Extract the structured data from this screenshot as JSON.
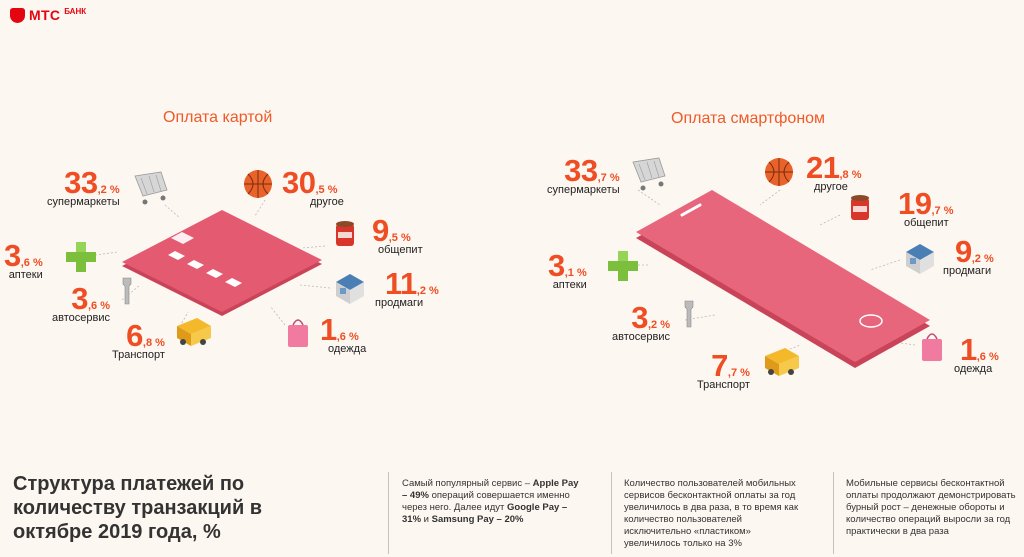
{
  "brand": {
    "name": "МТС",
    "sub": "БАНК"
  },
  "chart_data": [
    {
      "type": "table",
      "title": "Оплата картой",
      "categories": [
        "супермаркеты",
        "другое",
        "аптеки",
        "общепит",
        "автосервис",
        "продмаги",
        "Транспорт",
        "одежда"
      ],
      "values": [
        33.2,
        30.5,
        3.6,
        9.5,
        3.6,
        11.2,
        6.8,
        1.6
      ],
      "unit": "%"
    },
    {
      "type": "table",
      "title": "Оплата смартфоном",
      "categories": [
        "супермаркеты",
        "другое",
        "общепит",
        "аптеки",
        "продмаги",
        "автосервис",
        "Транспорт",
        "одежда"
      ],
      "values": [
        33.7,
        21.8,
        19.7,
        3.1,
        9.2,
        3.2,
        7.7,
        1.6
      ],
      "unit": "%"
    }
  ],
  "card": {
    "title": "Оплата картой",
    "items": [
      {
        "int": "33",
        "dec": ",2 %",
        "label": "супермаркеты"
      },
      {
        "int": "30",
        "dec": ",5 %",
        "label": "другое"
      },
      {
        "int": "3",
        "dec": ",6 %",
        "label": "аптеки"
      },
      {
        "int": "9",
        "dec": ",5 %",
        "label": "общепит"
      },
      {
        "int": "3",
        "dec": ",6 %",
        "label": "автосервис"
      },
      {
        "int": "11",
        "dec": ",2 %",
        "label": "продмаги"
      },
      {
        "int": "6",
        "dec": ",8 %",
        "label": "Транспорт"
      },
      {
        "int": "1",
        "dec": ",6 %",
        "label": "одежда"
      }
    ]
  },
  "phone": {
    "title": "Оплата смартфоном",
    "items": [
      {
        "int": "33",
        "dec": ",7 %",
        "label": "супермаркеты"
      },
      {
        "int": "21",
        "dec": ",8 %",
        "label": "другое"
      },
      {
        "int": "19",
        "dec": ",7 %",
        "label": "общепит"
      },
      {
        "int": "3",
        "dec": ",1 %",
        "label": "аптеки"
      },
      {
        "int": "9",
        "dec": ",2 %",
        "label": "продмаги"
      },
      {
        "int": "3",
        "dec": ",2 %",
        "label": "автосервис"
      },
      {
        "int": "7",
        "dec": ",7 %",
        "label": "Транспорт"
      },
      {
        "int": "1",
        "dec": ",6 %",
        "label": "одежда"
      }
    ]
  },
  "bottom": {
    "title": "Структура платежей по количеству транзакций в октябре 2019 года, %",
    "note1_a": "Самый популярный сервис – ",
    "note1_b": "Apple Pay – 49%",
    "note1_c": " операций совершается именно через него. Далее идут ",
    "note1_d": "Google Pay – 31%",
    "note1_e": " и ",
    "note1_f": "Samsung Pay – 20%",
    "note2": "Количество пользователей мобильных сервисов бесконтактной оплаты за год увеличилось в два раза, в то время как количество пользователей исключительно «пластиком» увеличилось только на 3%",
    "note3": "Мобильные сервисы бесконтактной оплаты продолжают демонстрировать бурный рост – денежные обороты и количество операций выросли за год практически в два раза"
  },
  "colors": {
    "accent": "#ef4d23",
    "device": "#e45a70",
    "background": "#fdf7f1"
  }
}
